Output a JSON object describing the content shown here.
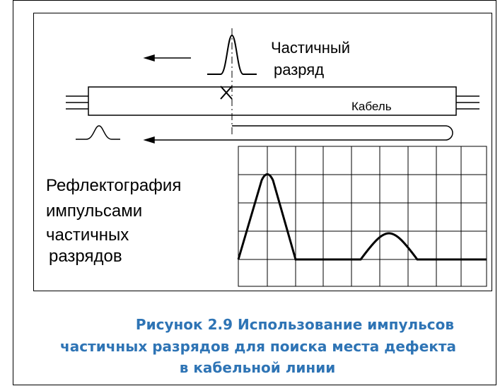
{
  "labels": {
    "pulse": [
      "Частичный",
      "разряд"
    ],
    "cable": "Кабель",
    "method": [
      "Рефлектография",
      "импульсами",
      "частичных",
      "разрядов"
    ]
  },
  "caption": [
    "Рисунок 2.9 Использование импульсов",
    "частичных разрядов для поиска места дефекта",
    "в кабельной линии"
  ]
}
